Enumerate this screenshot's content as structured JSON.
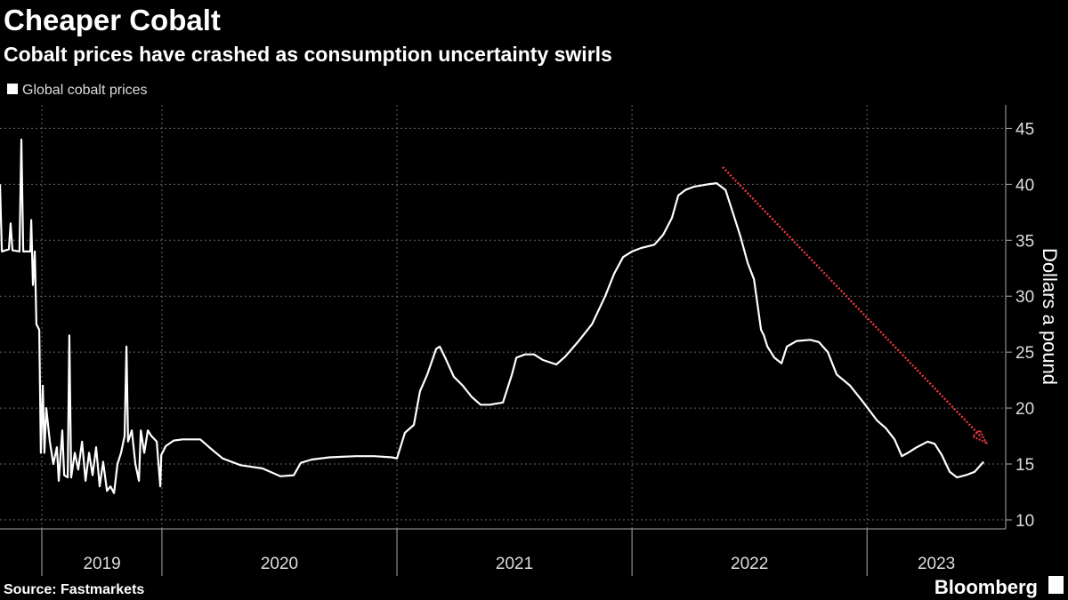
{
  "chart_data": {
    "type": "line",
    "title": "Cheaper Cobalt",
    "subtitle": "Cobalt prices have crashed as consumption uncertainty swirls",
    "y_axis_label": "Dollars a pound",
    "source": "Source: Fastmarkets",
    "brand": "Bloomberg",
    "x": [
      2019.311,
      2019.319,
      2019.349,
      2019.356,
      2019.364,
      2019.394,
      2019.402,
      2019.41,
      2019.44,
      2019.444,
      2019.451,
      2019.459,
      2019.466,
      2019.478,
      2019.485,
      2019.493,
      2019.5,
      2019.508,
      2019.523,
      2019.538,
      2019.553,
      2019.561,
      2019.576,
      2019.584,
      2019.599,
      2019.606,
      2019.614,
      2019.629,
      2019.644,
      2019.66,
      2019.675,
      2019.69,
      2019.705,
      2019.72,
      2019.735,
      2019.75,
      2019.766,
      2019.781,
      2019.796,
      2019.811,
      2019.826,
      2019.841,
      2019.849,
      2019.856,
      2019.872,
      2019.887,
      2019.902,
      2019.91,
      2019.925,
      2019.94,
      2019.955,
      2019.978,
      2019.993,
      2019.997,
      2020.016,
      2020.05,
      2020.088,
      2020.163,
      2020.201,
      2020.258,
      2020.334,
      2020.428,
      2020.504,
      2020.561,
      2020.591,
      2020.637,
      2020.713,
      2020.826,
      2020.902,
      2020.978,
      2021.0,
      2021.034,
      2021.072,
      2021.098,
      2021.129,
      2021.167,
      2021.182,
      2021.205,
      2021.242,
      2021.28,
      2021.318,
      2021.356,
      2021.394,
      2021.451,
      2021.489,
      2021.508,
      2021.545,
      2021.583,
      2021.621,
      2021.678,
      2021.716,
      2021.773,
      2021.83,
      2021.886,
      2021.924,
      2021.962,
      2022.0,
      2022.038,
      2022.095,
      2022.133,
      2022.17,
      2022.197,
      2022.227,
      2022.265,
      2022.322,
      2022.36,
      2022.398,
      2022.436,
      2022.462,
      2022.492,
      2022.519,
      2022.549,
      2022.561,
      2022.576,
      2022.606,
      2022.636,
      2022.659,
      2022.701,
      2022.758,
      2022.795,
      2022.833,
      2022.871,
      2022.928,
      2022.985,
      2023.042,
      2023.08,
      2023.117,
      2023.148,
      2023.174,
      2023.212,
      2023.258,
      2023.288,
      2023.318,
      2023.352,
      2023.383,
      2023.42,
      2023.458,
      2023.496
    ],
    "series": [
      {
        "name": "Global cobalt prices",
        "color": "#ffffff",
        "values": [
          40,
          34,
          34.2,
          36.5,
          34.1,
          34,
          44,
          34,
          34,
          36.8,
          31,
          34,
          27.5,
          27,
          16,
          22,
          16,
          20,
          17,
          15,
          16.5,
          13.5,
          18,
          14,
          13.8,
          26.5,
          13.8,
          16,
          14.5,
          17,
          13.5,
          16,
          14,
          16.5,
          13,
          15.2,
          12.6,
          13,
          12.4,
          15,
          16,
          17.5,
          25.5,
          17,
          18,
          15,
          13.5,
          18,
          16,
          18,
          17.5,
          17,
          13,
          15.8,
          16.6,
          17.1,
          17.2,
          17.2,
          16.5,
          15.5,
          14.9,
          14.6,
          13.9,
          14,
          15.1,
          15.4,
          15.6,
          15.7,
          15.7,
          15.6,
          15.5,
          17.8,
          18.5,
          21.5,
          23,
          25.3,
          25.5,
          24.5,
          22.8,
          22,
          21,
          20.3,
          20.3,
          20.5,
          23,
          24.5,
          24.8,
          24.8,
          24.3,
          23.9,
          24.6,
          26,
          27.5,
          30,
          32,
          33.5,
          34,
          34.3,
          34.6,
          35.5,
          37,
          39,
          39.5,
          39.8,
          40,
          40.1,
          39.5,
          37,
          35.3,
          33,
          31.5,
          27,
          26.5,
          25.5,
          24.5,
          24,
          25.5,
          26,
          26.1,
          25.9,
          25,
          23,
          22,
          20.5,
          18.9,
          18.2,
          17.2,
          15.7,
          16,
          16.5,
          17,
          16.8,
          15.8,
          14.3,
          13.8,
          14,
          14.3,
          15.2
        ]
      }
    ],
    "xlim": [
      2019.311,
      2023.59
    ],
    "x_dividers": [
      2019.489,
      2020,
      2021,
      2022,
      2023
    ],
    "xticks": [
      {
        "value": 2019.745,
        "label": "2019"
      },
      {
        "value": 2020.5,
        "label": "2020"
      },
      {
        "value": 2021.5,
        "label": "2021"
      },
      {
        "value": 2022.5,
        "label": "2022"
      },
      {
        "value": 2023.295,
        "label": "2023"
      }
    ],
    "ylim": [
      9.2,
      47.1
    ],
    "yticks": [
      10,
      15,
      20,
      25,
      30,
      35,
      40,
      45
    ],
    "grid": true,
    "legend": "top-left",
    "annotation_color": "#e8383d"
  }
}
